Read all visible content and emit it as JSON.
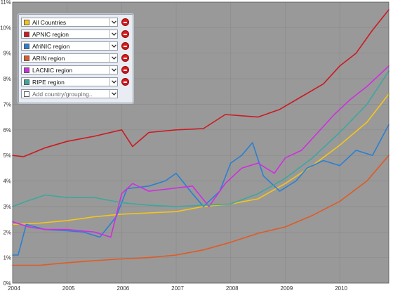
{
  "chart_data": {
    "type": "line",
    "title": "",
    "xlabel": "",
    "ylabel": "",
    "x_ticks": [
      "2004",
      "2005",
      "2006",
      "2007",
      "2008",
      "2009",
      "2010"
    ],
    "y_ticks": [
      "0%",
      "1%",
      "2%",
      "3%",
      "4%",
      "5%",
      "6%",
      "7%",
      "8%",
      "9%",
      "10%",
      "11%"
    ],
    "ylim": [
      0,
      11
    ],
    "xlim": [
      2004.0,
      2010.9
    ],
    "grid": true,
    "legend": "top-left",
    "plot_background": "#999999",
    "series": [
      {
        "name": "All Countries",
        "color": "#f5c518",
        "x": [
          2004.0,
          2004.5,
          2005.0,
          2005.5,
          2006.0,
          2006.5,
          2007.0,
          2007.5,
          2008.0,
          2008.5,
          2009.0,
          2009.5,
          2010.0,
          2010.5,
          2010.9
        ],
        "y": [
          2.3,
          2.35,
          2.45,
          2.6,
          2.7,
          2.75,
          2.8,
          3.0,
          3.1,
          3.3,
          3.9,
          4.6,
          5.4,
          6.3,
          7.4
        ]
      },
      {
        "name": "APNIC region",
        "color": "#cc1a22",
        "x": [
          2004.0,
          2004.2,
          2004.6,
          2005.0,
          2005.5,
          2006.0,
          2006.2,
          2006.5,
          2007.0,
          2007.5,
          2007.9,
          2008.5,
          2008.9,
          2009.3,
          2009.7,
          2010.0,
          2010.3,
          2010.6,
          2010.9
        ],
        "y": [
          5.0,
          4.95,
          5.3,
          5.55,
          5.75,
          6.0,
          5.35,
          5.9,
          6.0,
          6.05,
          6.6,
          6.5,
          6.8,
          7.3,
          7.8,
          8.5,
          9.0,
          9.9,
          10.7
        ]
      },
      {
        "name": "AfriNIC region",
        "color": "#2b7fd4",
        "x": [
          2004.0,
          2004.1,
          2004.25,
          2004.6,
          2005.0,
          2005.3,
          2005.6,
          2005.9,
          2006.1,
          2006.5,
          2006.8,
          2007.0,
          2007.3,
          2007.5,
          2007.8,
          2008.0,
          2008.2,
          2008.4,
          2008.6,
          2008.9,
          2009.2,
          2009.4,
          2009.7,
          2010.0,
          2010.3,
          2010.6,
          2010.9
        ],
        "y": [
          1.1,
          1.1,
          2.3,
          2.1,
          2.05,
          2.0,
          1.8,
          2.6,
          3.7,
          3.8,
          4.0,
          4.3,
          3.5,
          3.0,
          3.6,
          4.7,
          5.0,
          5.5,
          4.2,
          3.6,
          4.0,
          4.5,
          4.8,
          4.6,
          5.2,
          5.0,
          6.2
        ]
      },
      {
        "name": "ARIN region",
        "color": "#e15a24",
        "x": [
          2004.0,
          2004.5,
          2005.0,
          2005.5,
          2006.0,
          2006.5,
          2007.0,
          2007.5,
          2008.0,
          2008.5,
          2009.0,
          2009.5,
          2010.0,
          2010.5,
          2010.9
        ],
        "y": [
          0.7,
          0.7,
          0.8,
          0.88,
          0.95,
          1.0,
          1.1,
          1.3,
          1.6,
          1.95,
          2.2,
          2.65,
          3.2,
          4.0,
          5.0
        ]
      },
      {
        "name": "LACNIC region",
        "color": "#d02ee0",
        "x": [
          2004.0,
          2004.3,
          2004.6,
          2005.0,
          2005.5,
          2005.8,
          2006.0,
          2006.2,
          2006.5,
          2006.9,
          2007.3,
          2007.6,
          2007.9,
          2008.2,
          2008.5,
          2008.8,
          2009.0,
          2009.3,
          2009.6,
          2009.9,
          2010.2,
          2010.5,
          2010.9
        ],
        "y": [
          2.4,
          2.2,
          2.1,
          2.1,
          2.0,
          1.8,
          3.5,
          3.9,
          3.6,
          3.7,
          3.8,
          3.0,
          3.9,
          4.5,
          4.7,
          4.3,
          4.9,
          5.2,
          5.9,
          6.6,
          7.2,
          7.7,
          8.5
        ]
      },
      {
        "name": "RIPE region",
        "color": "#3fa79c",
        "x": [
          2004.0,
          2004.25,
          2004.6,
          2005.0,
          2005.5,
          2006.0,
          2006.5,
          2007.0,
          2007.5,
          2008.0,
          2008.5,
          2009.0,
          2009.5,
          2010.0,
          2010.5,
          2010.9
        ],
        "y": [
          3.0,
          3.2,
          3.45,
          3.35,
          3.35,
          3.15,
          3.05,
          3.0,
          3.05,
          3.1,
          3.5,
          4.1,
          4.9,
          5.9,
          7.0,
          8.3
        ]
      }
    ]
  },
  "legend": {
    "add_placeholder": "Add country/grouping.."
  }
}
